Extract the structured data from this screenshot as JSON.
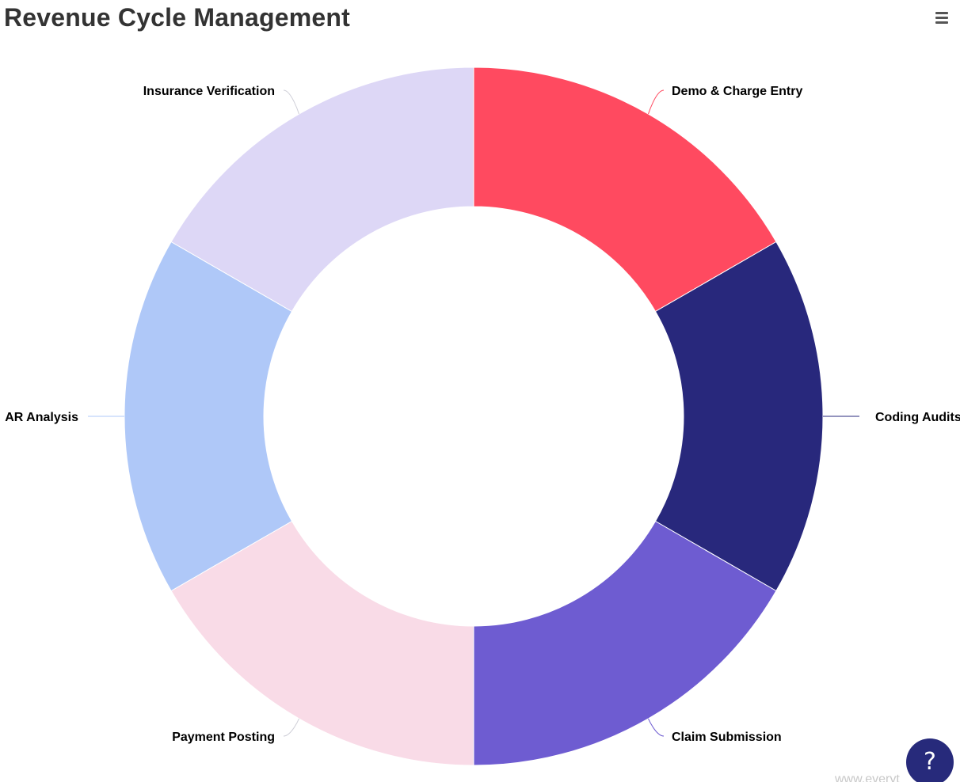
{
  "chart_data": {
    "type": "pie",
    "variant": "donut",
    "title": "Revenue Cycle Management",
    "categories": [
      "Demo & Charge Entry",
      "Coding Audits",
      "Claim Submission",
      "Payment Posting",
      "AR Analysis",
      "Insurance Verification"
    ],
    "values": [
      1,
      1,
      1,
      1,
      1,
      1
    ],
    "colors": [
      "#ff4a60",
      "#28287c",
      "#6e5cd1",
      "#f9dbe7",
      "#afc8f8",
      "#ddd7f6"
    ],
    "start_angle_deg": 0,
    "legend": "none",
    "data_labels": "outside-with-connectors"
  },
  "toolbar": {
    "menu_icon": "hamburger-menu-icon"
  },
  "help": {
    "label": "?",
    "icon": "help-icon"
  },
  "watermark": {
    "text": "www.everyt"
  }
}
